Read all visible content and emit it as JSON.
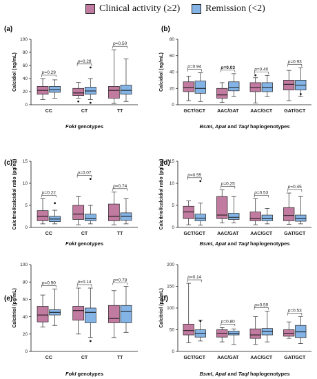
{
  "legend": [
    {
      "label": "Clinical activity (≥2)",
      "color": "#c27ba0"
    },
    {
      "label": "Remission  (<2)",
      "color": "#84b4e6"
    }
  ],
  "colors": {
    "activity": "#c27ba0",
    "remission": "#84b4e6",
    "bracket": "#333333"
  },
  "chart_data": [
    {
      "panel": "(a)",
      "type": "box",
      "ylabel": "Calcidiol (ng/mL)",
      "xlabel_parts": [
        {
          "t": "FokI",
          "i": true
        },
        {
          "t": " genotypes",
          "i": false
        }
      ],
      "ylim": [
        0,
        100
      ],
      "yticks": [
        0,
        20,
        40,
        60,
        80,
        100
      ],
      "categories": [
        "CC",
        "CT",
        "TT"
      ],
      "pvalues": [
        "p=0.29",
        "p=0.28",
        "p=0.50"
      ],
      "p_bold": [
        false,
        false,
        false
      ],
      "series": [
        {
          "name": "Clinical activity (≥2)",
          "boxes": [
            {
              "min": 8,
              "q1": 16,
              "median": 22,
              "q3": 28,
              "max": 40,
              "out": []
            },
            {
              "min": 10,
              "q1": 14,
              "median": 18,
              "q3": 25,
              "max": 34,
              "out": [
                5
              ]
            },
            {
              "min": 2,
              "q1": 10,
              "median": 22,
              "q3": 28,
              "max": 84,
              "out": []
            }
          ]
        },
        {
          "name": "Remission  (<2)",
          "boxes": [
            {
              "min": 10,
              "q1": 19,
              "median": 23,
              "q3": 28,
              "max": 38,
              "out": []
            },
            {
              "min": 8,
              "q1": 16,
              "median": 21,
              "q3": 27,
              "max": 40,
              "out": [
                57,
                3
              ]
            },
            {
              "min": 5,
              "q1": 16,
              "median": 22,
              "q3": 30,
              "max": 70,
              "out": []
            }
          ]
        }
      ]
    },
    {
      "panel": "(b)",
      "type": "box",
      "ylabel": "Calcidiol (ng/mL)",
      "xlabel_parts": [
        {
          "t": "BsmI",
          "i": true
        },
        {
          "t": ", ",
          "i": false
        },
        {
          "t": "ApaI",
          "i": true
        },
        {
          "t": " and ",
          "i": false
        },
        {
          "t": "TaqI",
          "i": true
        },
        {
          "t": " haplogenotypes",
          "i": false
        }
      ],
      "ylim": [
        0,
        80
      ],
      "yticks": [
        0,
        20,
        40,
        60,
        80
      ],
      "categories": [
        "GCT/GCT",
        "AAC/GAT",
        "AAC/GCT",
        "GAT/GCT"
      ],
      "pvalues": [
        "p=0.94",
        "p=0.03",
        "p=0.40",
        "p=0.93"
      ],
      "p_bold": [
        false,
        true,
        false,
        false
      ],
      "series": [
        {
          "name": "Clinical activity (≥2)",
          "boxes": [
            {
              "min": 5,
              "q1": 16,
              "median": 21,
              "q3": 28,
              "max": 35,
              "out": []
            },
            {
              "min": 3,
              "q1": 8,
              "median": 12,
              "q3": 20,
              "max": 27,
              "out": []
            },
            {
              "min": 2,
              "q1": 16,
              "median": 21,
              "q3": 27,
              "max": 33,
              "out": [
                36
              ]
            },
            {
              "min": 5,
              "q1": 18,
              "median": 25,
              "q3": 30,
              "max": 42,
              "out": []
            }
          ]
        },
        {
          "name": "Remission  (<2)",
          "boxes": [
            {
              "min": 4,
              "q1": 14,
              "median": 20,
              "q3": 29,
              "max": 39,
              "out": []
            },
            {
              "min": 10,
              "q1": 17,
              "median": 21,
              "q3": 28,
              "max": 38,
              "out": []
            },
            {
              "min": 10,
              "q1": 16,
              "median": 21,
              "q3": 27,
              "max": 36,
              "out": []
            },
            {
              "min": 10,
              "q1": 18,
              "median": 24,
              "q3": 30,
              "max": 45,
              "out": [
                13
              ]
            }
          ]
        }
      ]
    },
    {
      "panel": "(c)",
      "type": "box",
      "ylabel": "Calcitriol/calcidiol ratio (pg/ng)",
      "xlabel_parts": [
        {
          "t": "FokI",
          "i": true
        },
        {
          "t": " genotypes",
          "i": false
        }
      ],
      "ylim": [
        0,
        15
      ],
      "yticks": [
        0,
        5,
        10,
        15
      ],
      "categories": [
        "CC",
        "CT",
        "TT"
      ],
      "pvalues": [
        "p=0.22",
        "p=0.07",
        "p=0.74"
      ],
      "p_bold": [
        false,
        false,
        false
      ],
      "series": [
        {
          "name": "Clinical activity (≥2)",
          "boxes": [
            {
              "min": 0.8,
              "q1": 1.5,
              "median": 2.5,
              "q3": 3.8,
              "max": 6.5,
              "out": []
            },
            {
              "min": 0.6,
              "q1": 1.8,
              "median": 3,
              "q3": 5,
              "max": 7,
              "out": []
            },
            {
              "min": 0.6,
              "q1": 1.5,
              "median": 2.5,
              "q3": 5.3,
              "max": 8,
              "out": []
            }
          ]
        },
        {
          "name": "Remission  (<2)",
          "boxes": [
            {
              "min": 0.8,
              "q1": 1.3,
              "median": 1.9,
              "q3": 2.5,
              "max": 3.9,
              "out": [
                5.5
              ]
            },
            {
              "min": 0.8,
              "q1": 1.5,
              "median": 2,
              "q3": 3,
              "max": 5,
              "out": [
                11
              ]
            },
            {
              "min": 0.8,
              "q1": 1.6,
              "median": 2.5,
              "q3": 3.3,
              "max": 6.5,
              "out": []
            }
          ]
        }
      ]
    },
    {
      "panel": "(d)",
      "type": "box",
      "ylabel": "Calcitriol/calcidiol ratio (pg/ng)",
      "xlabel_parts": [
        {
          "t": "BsmI",
          "i": true
        },
        {
          "t": ", ",
          "i": false
        },
        {
          "t": "ApaI",
          "i": true
        },
        {
          "t": " and ",
          "i": false
        },
        {
          "t": "TaqI",
          "i": true
        },
        {
          "t": " haplogenotypes",
          "i": false
        }
      ],
      "ylim": [
        0,
        15
      ],
      "yticks": [
        0,
        5,
        10,
        15
      ],
      "categories": [
        "GCT/GCT",
        "AAC/GAT",
        "AAC/GCT",
        "GAT/GCT"
      ],
      "pvalues": [
        "p=0.55",
        "p=0.25",
        "p=0.53",
        "p=0.45"
      ],
      "p_bold": [
        false,
        false,
        false,
        false
      ],
      "series": [
        {
          "name": "Clinical activity (≥2)",
          "boxes": [
            {
              "min": 0.6,
              "q1": 2,
              "median": 3.5,
              "q3": 4.8,
              "max": 6,
              "out": []
            },
            {
              "min": 1,
              "q1": 2,
              "median": 2.8,
              "q3": 7,
              "max": 8.5,
              "out": []
            },
            {
              "min": 0.6,
              "q1": 1.5,
              "median": 2,
              "q3": 3.5,
              "max": 6.5,
              "out": []
            },
            {
              "min": 0.7,
              "q1": 1.5,
              "median": 2.7,
              "q3": 4.5,
              "max": 7.8,
              "out": []
            }
          ]
        },
        {
          "name": "Remission  (<2)",
          "boxes": [
            {
              "min": 0.5,
              "q1": 1.5,
              "median": 2.1,
              "q3": 3,
              "max": 5.5,
              "out": [
                10.5
              ]
            },
            {
              "min": 1,
              "q1": 1.8,
              "median": 2.3,
              "q3": 3.2,
              "max": 7,
              "out": []
            },
            {
              "min": 0.8,
              "q1": 1.5,
              "median": 2,
              "q3": 2.8,
              "max": 4.3,
              "out": []
            },
            {
              "min": 0.8,
              "q1": 1.4,
              "median": 2,
              "q3": 2.8,
              "max": 7,
              "out": []
            }
          ]
        }
      ]
    },
    {
      "panel": "(e)",
      "type": "box",
      "ylabel": "Calcitriol (pg/mL)",
      "xlabel_parts": [
        {
          "t": "FokI",
          "i": true
        },
        {
          "t": " genotypes",
          "i": false
        }
      ],
      "ylim": [
        0,
        100
      ],
      "yticks": [
        0,
        20,
        40,
        60,
        80,
        100
      ],
      "categories": [
        "CC",
        "CT",
        "TT"
      ],
      "pvalues": [
        "p=0.90",
        "p=0.14",
        "p=0.78"
      ],
      "p_bold": [
        false,
        false,
        false
      ],
      "series": [
        {
          "name": "Clinical activity (≥2)",
          "boxes": [
            {
              "min": 28,
              "q1": 34,
              "median": 42,
              "q3": 52,
              "max": 65,
              "out": []
            },
            {
              "min": 20,
              "q1": 36,
              "median": 47,
              "q3": 52,
              "max": 73,
              "out": []
            },
            {
              "min": 16,
              "q1": 33,
              "median": 38,
              "q3": 53,
              "max": 70,
              "out": []
            }
          ]
        },
        {
          "name": "Remission  (<2)",
          "boxes": [
            {
              "min": 30,
              "q1": 42,
              "median": 45,
              "q3": 48,
              "max": 72,
              "out": []
            },
            {
              "min": 16,
              "q1": 33,
              "median": 45,
              "q3": 50,
              "max": 73,
              "out": [
                12
              ]
            },
            {
              "min": 22,
              "q1": 33,
              "median": 46,
              "q3": 53,
              "max": 75,
              "out": []
            }
          ]
        }
      ]
    },
    {
      "panel": "(f)",
      "type": "box",
      "ylabel": "Calcitriol (pg/mL)",
      "xlabel_parts": [
        {
          "t": "BsmI",
          "i": true
        },
        {
          "t": ", ",
          "i": false
        },
        {
          "t": "ApaI",
          "i": true
        },
        {
          "t": " and ",
          "i": false
        },
        {
          "t": "TaqI",
          "i": true
        },
        {
          "t": " haplogenotypes",
          "i": false
        }
      ],
      "ylim": [
        0,
        200
      ],
      "yticks": [
        0,
        50,
        100,
        150,
        200
      ],
      "categories": [
        "GCT/GCT",
        "AAC/GAT",
        "AAC/GCT",
        "GAT/GCT"
      ],
      "pvalues": [
        "p=0.14",
        "p=0.80",
        "p=0.59",
        "p=0.53"
      ],
      "p_bold": [
        false,
        false,
        false,
        false
      ],
      "series": [
        {
          "name": "Clinical activity (≥2)",
          "boxes": [
            {
              "min": 20,
              "q1": 38,
              "median": 48,
              "q3": 63,
              "max": 157,
              "out": []
            },
            {
              "min": 22,
              "q1": 33,
              "median": 42,
              "q3": 50,
              "max": 55,
              "out": []
            },
            {
              "min": 16,
              "q1": 30,
              "median": 38,
              "q3": 52,
              "max": 80,
              "out": []
            },
            {
              "min": 30,
              "q1": 35,
              "median": 42,
              "q3": 50,
              "max": 68,
              "out": []
            }
          ]
        },
        {
          "name": "Remission  (<2)",
          "boxes": [
            {
              "min": 24,
              "q1": 33,
              "median": 42,
              "q3": 50,
              "max": 72,
              "out": [
                70
              ]
            },
            {
              "min": 16,
              "q1": 38,
              "median": 42,
              "q3": 47,
              "max": 52,
              "out": []
            },
            {
              "min": 22,
              "q1": 38,
              "median": 46,
              "q3": 53,
              "max": 93,
              "out": []
            },
            {
              "min": 18,
              "q1": 32,
              "median": 45,
              "q3": 60,
              "max": 80,
              "out": []
            }
          ]
        }
      ]
    }
  ]
}
